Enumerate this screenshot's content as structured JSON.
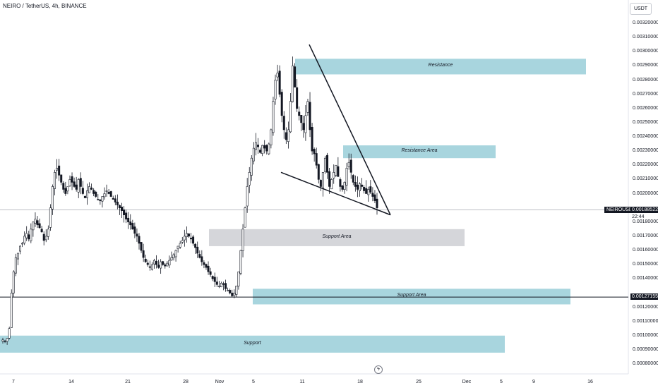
{
  "header": {
    "title": "NEIRO / TetherUS, 4h, BINANCE",
    "unit_button": "USDT"
  },
  "chart_data": {
    "type": "candlestick",
    "symbol": "NEIROUSDT",
    "timeframe": "4h",
    "exchange": "BINANCE",
    "quote_unit": "USDT",
    "ylim": [
      0.00077,
      0.00326
    ],
    "y_ticks": [
      "0.00320000",
      "0.00310000",
      "0.00300000",
      "0.00290000",
      "0.00280000",
      "0.00270000",
      "0.00260000",
      "0.00250000",
      "0.00240000",
      "0.00230000",
      "0.00220000",
      "0.00210000",
      "0.00200000",
      "0.00180000",
      "0.00170000",
      "0.00160000",
      "0.00150000",
      "0.00140000",
      "0.00120000",
      "0.00110000",
      "0.00100000",
      "0.00090000",
      "0.00080000"
    ],
    "x_tick_labels": [
      "7",
      "14",
      "21",
      "28",
      "Nov",
      "5",
      "11",
      "18",
      "25",
      "Dec",
      "5",
      "9",
      "16"
    ],
    "last_price": "0.00188522",
    "last_price_symbol": "NEIROUSDT",
    "countdown": "22:44",
    "horizontal_line": "0.00127155",
    "zones": [
      {
        "label": "Resistance",
        "low": 0.00284,
        "high": 0.00295,
        "color": "#a8d5de"
      },
      {
        "label": "Resistance Area",
        "low": 0.00225,
        "high": 0.00234,
        "color": "#a8d5de"
      },
      {
        "label": "Support Area",
        "low": 0.00163,
        "high": 0.00175,
        "color": "#d5d6da"
      },
      {
        "label": "Support Area",
        "low": 0.00122,
        "high": 0.00133,
        "color": "#a8d5de"
      },
      {
        "label": "Support",
        "low": 0.00088,
        "high": 0.001,
        "color": "#a8d5de"
      }
    ],
    "wedge": {
      "upper": [
        [
          "2024-11-11",
          0.00305
        ],
        [
          "2024-11-22",
          0.0019
        ]
      ],
      "lower": [
        [
          "2024-11-08",
          0.00215
        ],
        [
          "2024-11-22",
          0.0019
        ]
      ]
    },
    "closes": [
      0.00097,
      0.00096,
      0.00098,
      0.00105,
      0.0013,
      0.00145,
      0.00155,
      0.00158,
      0.00163,
      0.00165,
      0.0017,
      0.00172,
      0.00168,
      0.00175,
      0.0018,
      0.00182,
      0.00178,
      0.00176,
      0.00173,
      0.00167,
      0.0017,
      0.00175,
      0.0019,
      0.00205,
      0.00215,
      0.00218,
      0.00213,
      0.00208,
      0.00203,
      0.002,
      0.00205,
      0.0021,
      0.00208,
      0.00205,
      0.00203,
      0.0021,
      0.00205,
      0.002,
      0.00197,
      0.00202,
      0.00205,
      0.00203,
      0.002,
      0.00198,
      0.00196,
      0.00195,
      0.00198,
      0.002,
      0.00202,
      0.002,
      0.00198,
      0.00196,
      0.00194,
      0.00192,
      0.0019,
      0.00188,
      0.00185,
      0.00182,
      0.0018,
      0.00178,
      0.00175,
      0.00172,
      0.0017,
      0.00165,
      0.0016,
      0.00155,
      0.00152,
      0.0015,
      0.00148,
      0.0015,
      0.00153,
      0.0015,
      0.00148,
      0.00152,
      0.0015,
      0.00149,
      0.00151,
      0.00153,
      0.00155,
      0.00157,
      0.0016,
      0.00163,
      0.00165,
      0.00167,
      0.0017,
      0.00172,
      0.0017,
      0.00168,
      0.00165,
      0.00162,
      0.00158,
      0.00155,
      0.00152,
      0.0015,
      0.00148,
      0.00145,
      0.00143,
      0.0014,
      0.00138,
      0.00136,
      0.00135,
      0.00137,
      0.00136,
      0.00133,
      0.00132,
      0.0013,
      0.00128,
      0.0013,
      0.00135,
      0.00145,
      0.0016,
      0.00175,
      0.0019,
      0.00205,
      0.00215,
      0.00225,
      0.00232,
      0.00236,
      0.00233,
      0.00229,
      0.00234,
      0.00232,
      0.0023,
      0.00235,
      0.00245,
      0.00265,
      0.0028,
      0.00285,
      0.0027,
      0.00255,
      0.00245,
      0.00238,
      0.00245,
      0.00265,
      0.0029,
      0.00275,
      0.0026,
      0.00255,
      0.0025,
      0.00245,
      0.00255,
      0.00265,
      0.00245,
      0.0023,
      0.00228,
      0.0022,
      0.0021,
      0.00205,
      0.00215,
      0.00225,
      0.00215,
      0.00205,
      0.0021,
      0.00215,
      0.0022,
      0.00212,
      0.00205,
      0.00203,
      0.00208,
      0.00218,
      0.00222,
      0.00215,
      0.00208,
      0.00205,
      0.00203,
      0.00207,
      0.00205,
      0.00202,
      0.002,
      0.00203,
      0.00201,
      0.00198,
      0.00195,
      0.0019
    ]
  },
  "drawings_note": "",
  "bolt_icon": "lightning-icon"
}
